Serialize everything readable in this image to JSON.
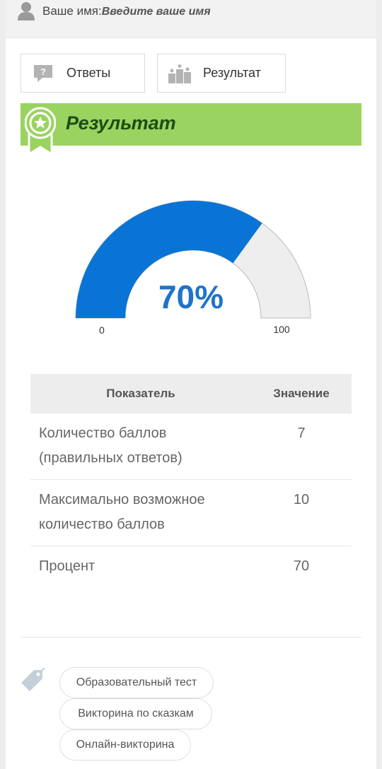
{
  "header": {
    "name_label": "Ваше имя:",
    "name_placeholder": "Введите ваше имя"
  },
  "tabs": [
    {
      "label": "Ответы",
      "icon": "question-bubble-icon"
    },
    {
      "label": "Результат",
      "icon": "podium-icon"
    }
  ],
  "banner": {
    "title": "Результат",
    "icon": "award-ribbon-icon",
    "color": "#9ad35f"
  },
  "gauge": {
    "value": 70,
    "display": "70%",
    "min_label": "0",
    "max_label": "100",
    "fill_color": "#0a74d6",
    "track_color": "#eeeeee"
  },
  "table": {
    "headers": [
      "Показатель",
      "Значение"
    ],
    "rows": [
      {
        "metric": "Количество баллов (правильных ответов)",
        "value": "7"
      },
      {
        "metric": "Максимально возможное количество баллов",
        "value": "10"
      },
      {
        "metric": "Процент",
        "value": "70"
      }
    ]
  },
  "tags": {
    "icon": "tag-icon",
    "items": [
      "Образовательный тест",
      "Викторина по сказкам",
      "Онлайн-викторина"
    ]
  }
}
